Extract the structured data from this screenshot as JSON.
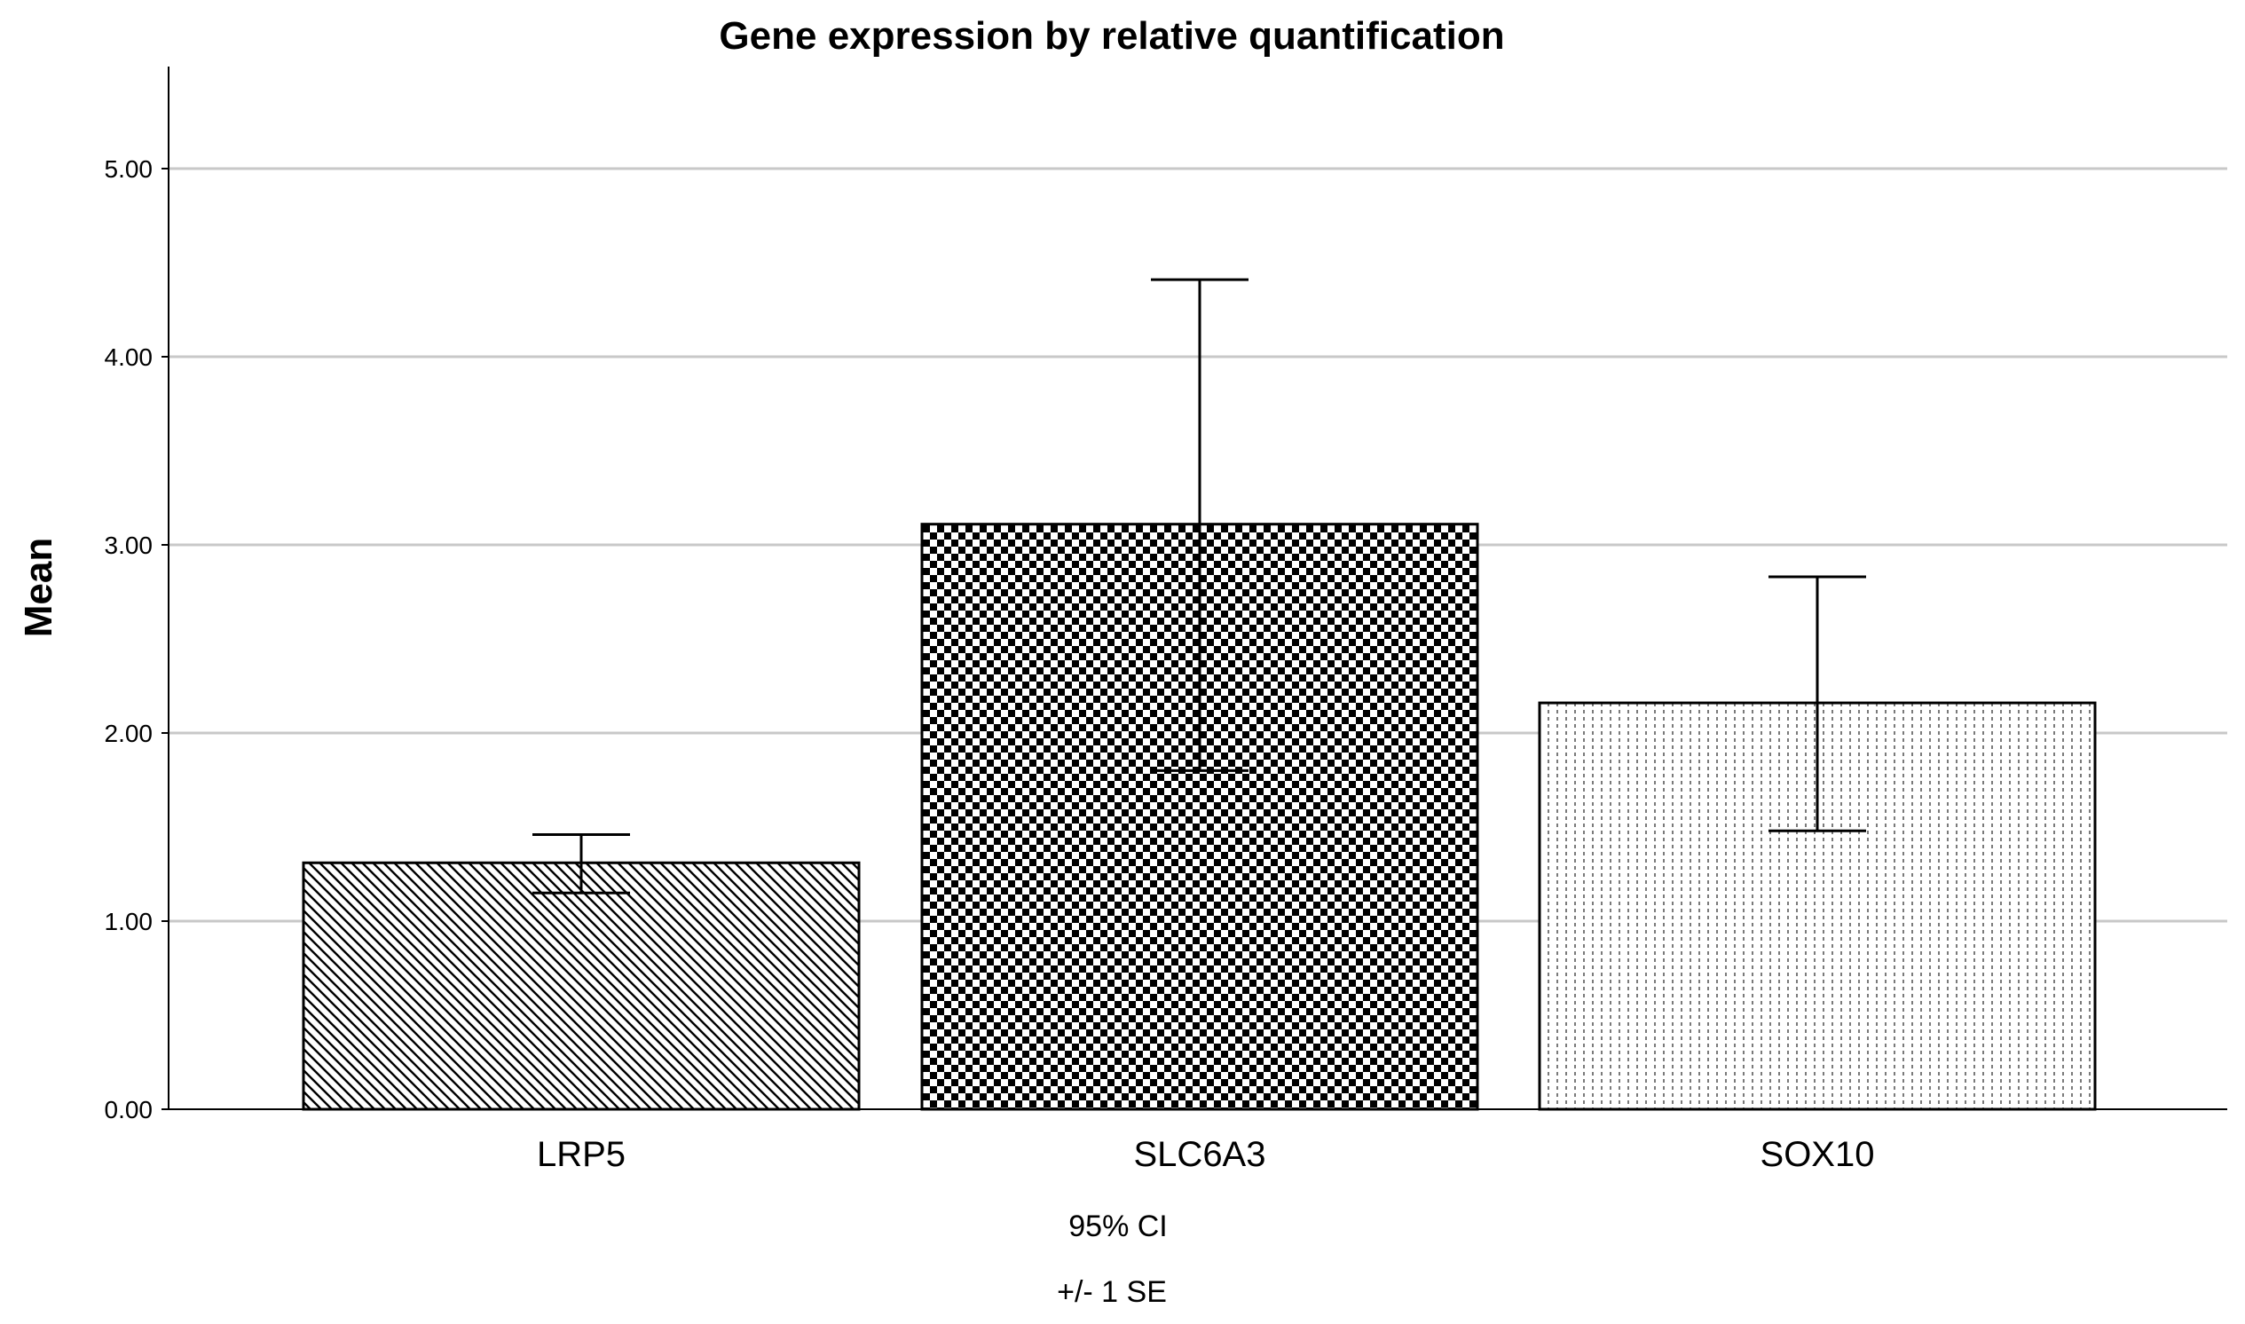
{
  "chart_data": {
    "type": "bar",
    "title": "Gene expression by relative quantification",
    "xlabel": "",
    "ylabel": "Mean",
    "ylim": [
      0,
      5.5
    ],
    "yticks": [
      0,
      1,
      2,
      3,
      4,
      5
    ],
    "ytick_labels": [
      "0.00",
      "1.00",
      "2.00",
      "3.00",
      "4.00",
      "5.00"
    ],
    "grid": "horizontal",
    "categories": [
      "LRP5",
      "SLC6A3",
      "SOX10"
    ],
    "values": [
      1.31,
      3.11,
      2.16
    ],
    "error_bars": {
      "lower": [
        1.15,
        1.8,
        1.48
      ],
      "upper": [
        1.46,
        4.41,
        2.83
      ]
    },
    "fill_patterns": [
      "diagonal-hatch",
      "checkerboard",
      "vertical-dots"
    ],
    "footnotes": [
      "95% CI",
      "+/- 1 SE"
    ],
    "colors": {
      "bar_pattern": "#000000",
      "bar_background": "#ffffff",
      "grid": "#c8c8c8",
      "axis": "#000000"
    }
  }
}
